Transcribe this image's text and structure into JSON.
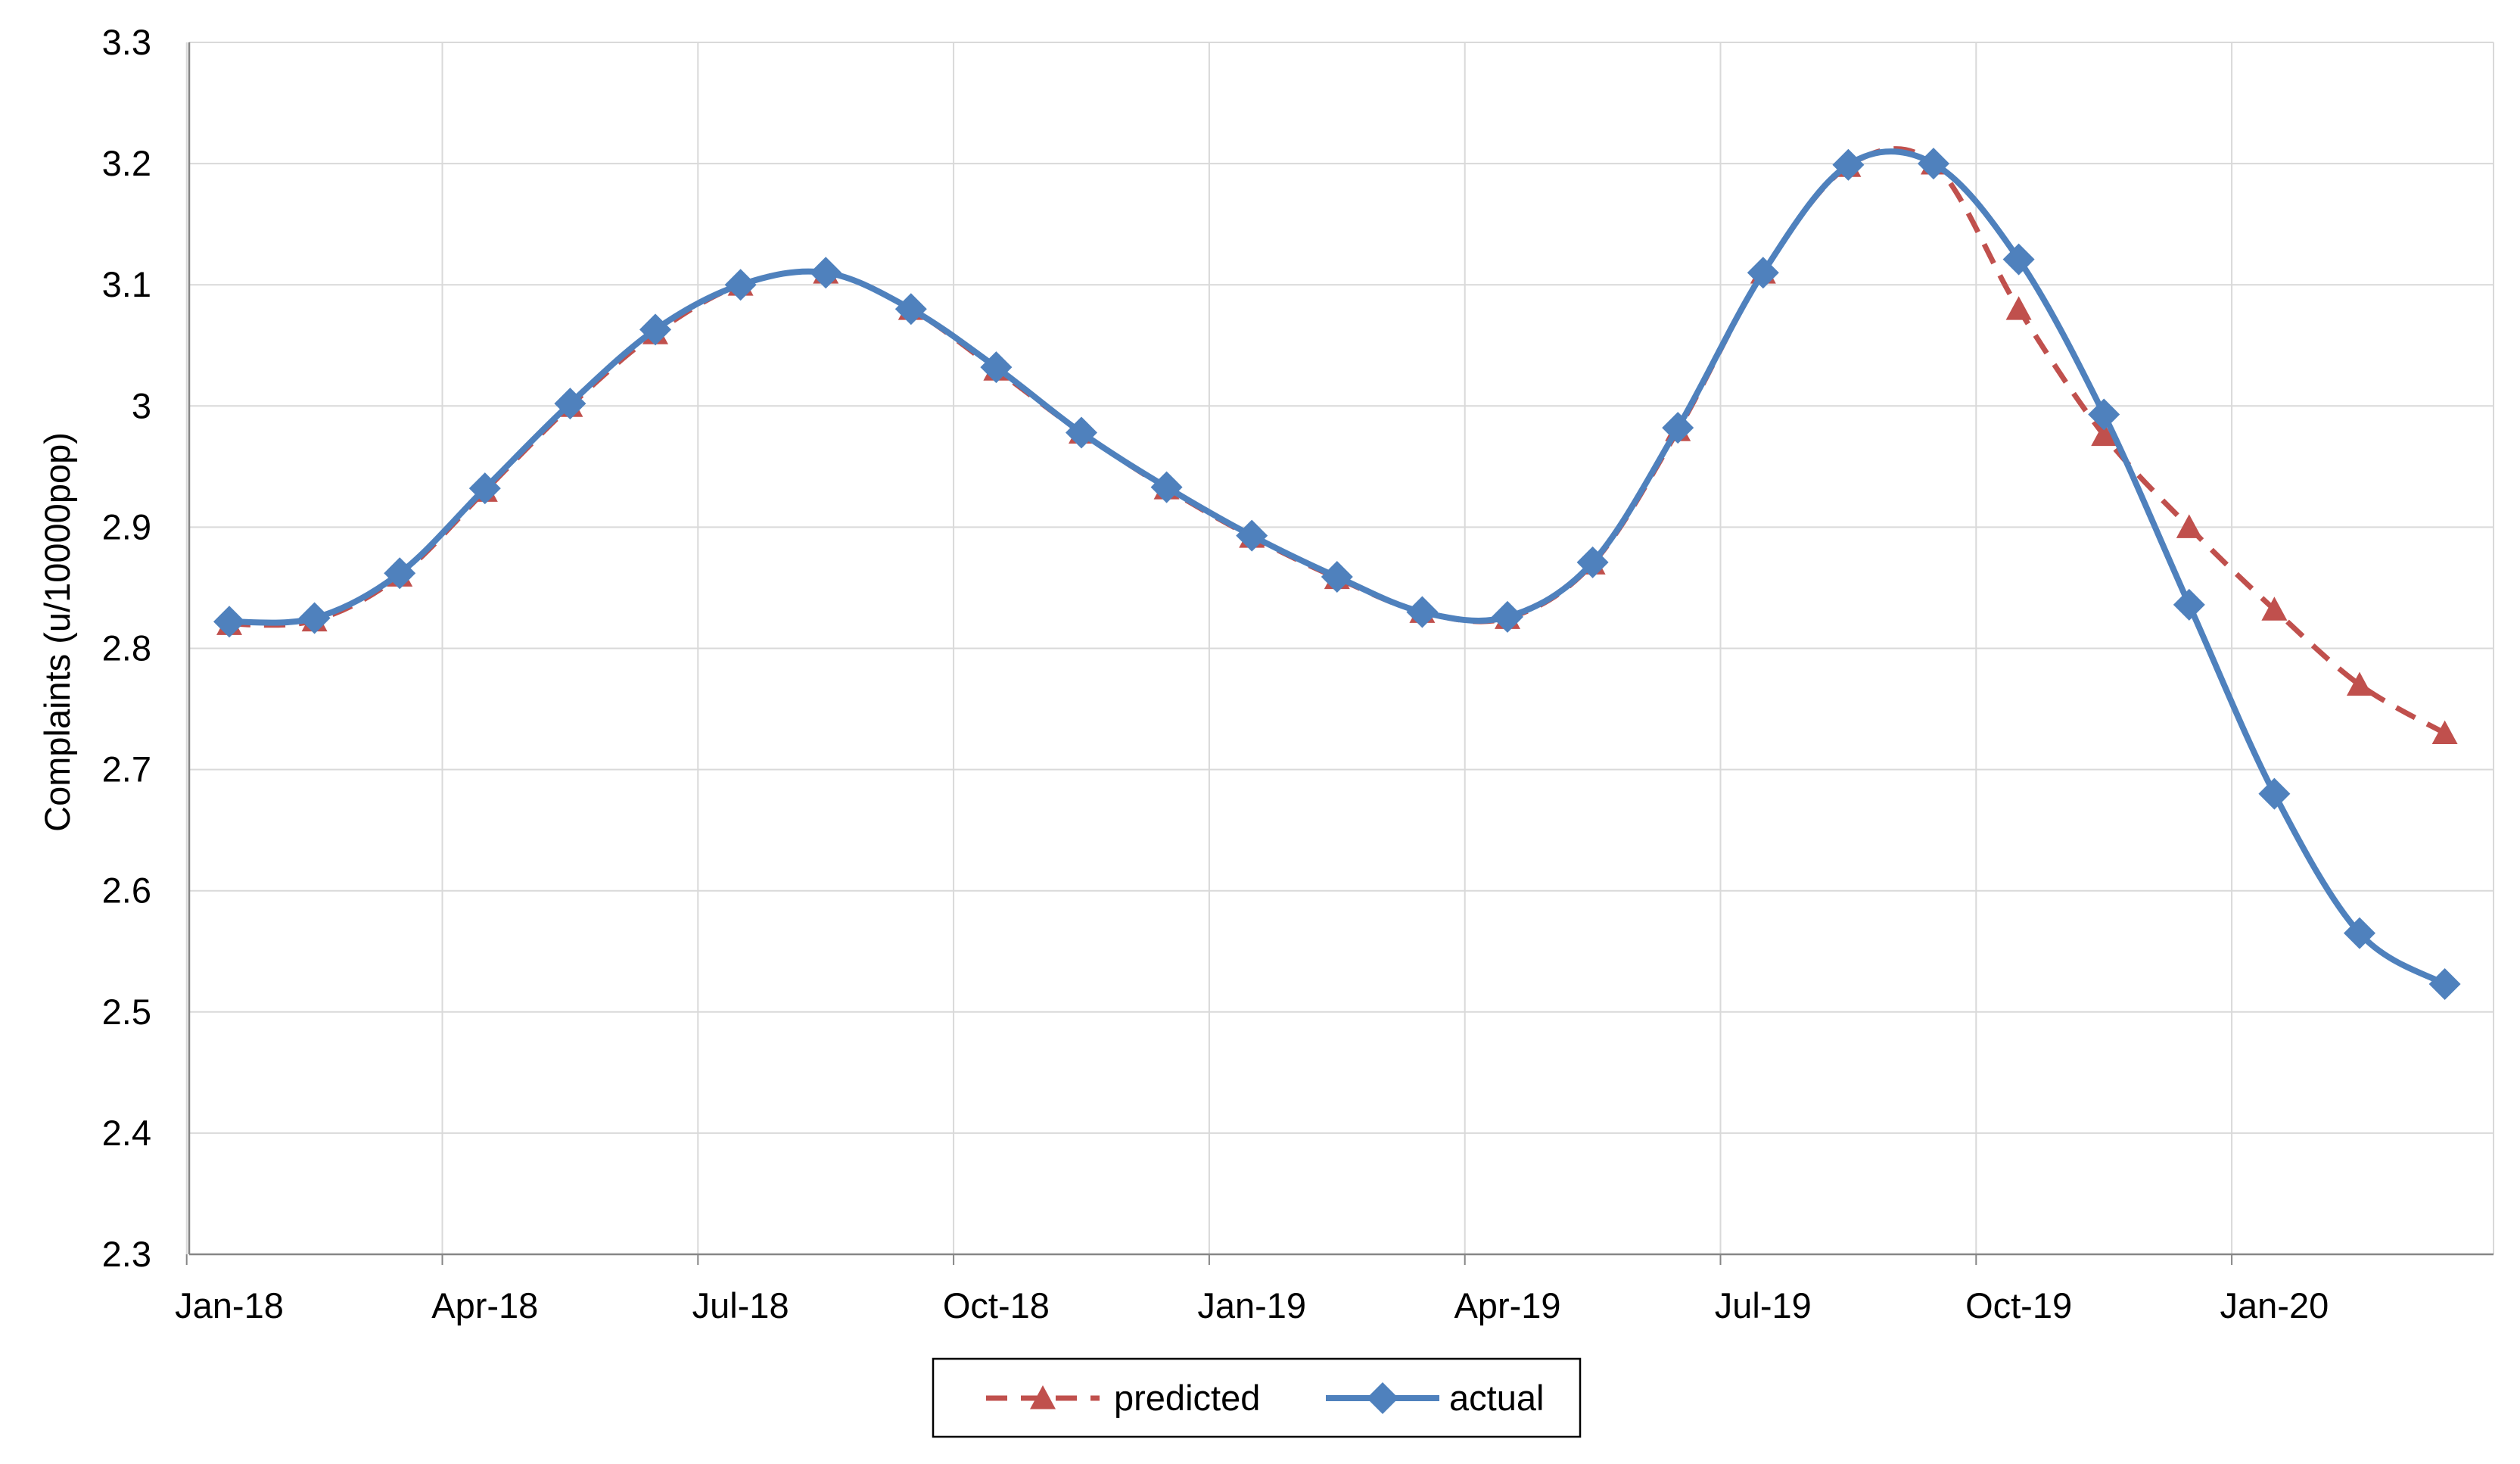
{
  "chart_data": {
    "type": "line",
    "title": "",
    "xlabel": "",
    "ylabel": "Complaints (u/10000pop)",
    "ylim": [
      2.3,
      3.3
    ],
    "y_ticks": [
      "3.3",
      "3.2",
      "3.1",
      "3",
      "2.9",
      "2.8",
      "2.7",
      "2.6",
      "2.5",
      "2.4",
      "2.3"
    ],
    "x_ticks": [
      "Jan-18",
      "Apr-18",
      "Jul-18",
      "Oct-18",
      "Jan-19",
      "Apr-19",
      "Jul-19",
      "Oct-19",
      "Jan-20"
    ],
    "x": [
      "Jan-18",
      "Feb-18",
      "Mar-18",
      "Apr-18",
      "May-18",
      "Jun-18",
      "Jul-18",
      "Aug-18",
      "Sep-18",
      "Oct-18",
      "Nov-18",
      "Dec-18",
      "Jan-19",
      "Feb-19",
      "Mar-19",
      "Apr-19",
      "May-19",
      "Jun-19",
      "Jul-19",
      "Aug-19",
      "Sep-19",
      "Oct-19",
      "Nov-19",
      "Dec-19",
      "Jan-20",
      "Feb-20",
      "Mar-20"
    ],
    "grid": true,
    "legend_position": "bottom",
    "series": [
      {
        "name": "predicted",
        "color": "#c0504d",
        "marker": "triangle",
        "line_style": "dashed",
        "values": [
          2.82,
          2.823,
          2.86,
          2.93,
          3.0,
          3.06,
          3.1,
          3.11,
          3.08,
          3.03,
          2.978,
          2.932,
          2.892,
          2.858,
          2.83,
          2.825,
          2.87,
          2.98,
          3.11,
          3.198,
          3.2,
          3.08,
          2.976,
          2.9,
          2.832,
          2.77,
          2.73
        ]
      },
      {
        "name": "actual",
        "color": "#4f81bd",
        "marker": "diamond",
        "line_style": "solid",
        "values": [
          2.822,
          2.825,
          2.862,
          2.932,
          3.002,
          3.063,
          3.1,
          3.11,
          3.08,
          3.032,
          2.978,
          2.933,
          2.893,
          2.859,
          2.83,
          2.826,
          2.871,
          2.982,
          3.11,
          3.199,
          3.2,
          3.121,
          2.993,
          2.836,
          2.68,
          2.565,
          2.523
        ]
      }
    ]
  }
}
